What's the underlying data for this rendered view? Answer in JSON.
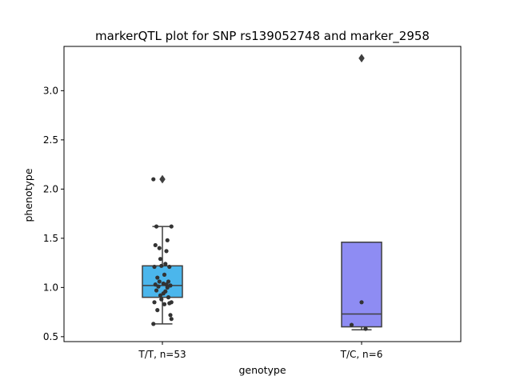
{
  "chart_data": {
    "type": "box",
    "title": "markerQTL plot for SNP rs139052748 and marker_2958",
    "xlabel": "genotype",
    "ylabel": "phenotype",
    "ylim": [
      0.45,
      3.45
    ],
    "yticks": [
      0.5,
      1.0,
      1.5,
      2.0,
      2.5,
      3.0
    ],
    "ytick_labels": [
      "0.5",
      "1.0",
      "1.5",
      "2.0",
      "2.5",
      "3.0"
    ],
    "categories": [
      "T/T, n=53",
      "T/C, n=6"
    ],
    "colors": {
      "T/T, n=53": "#4bb6ec",
      "T/C, n=6": "#8e8cf3",
      "box_edge": "#3f3f3f",
      "points": "#333333",
      "frame": "#000000"
    },
    "boxes": [
      {
        "category": "T/T, n=53",
        "q1": 0.9,
        "median": 1.02,
        "q3": 1.22,
        "whisker_low": 0.63,
        "whisker_high": 1.62,
        "outliers": [
          2.1
        ]
      },
      {
        "category": "T/C, n=6",
        "q1": 0.6,
        "median": 0.73,
        "q3": 1.46,
        "whisker_low": 0.57,
        "whisker_high": 1.46,
        "outliers": [
          3.33
        ]
      }
    ],
    "points": [
      {
        "category": "T/T, n=53",
        "jitter": [
          -0.45,
          0.45,
          -0.3,
          0.25,
          -0.35,
          -0.15,
          0.2,
          -0.1,
          0.15,
          -0.05,
          0.35,
          -0.4,
          0.1,
          -0.25,
          0.3,
          -0.15,
          0.05,
          0.2,
          -0.35,
          0.4,
          -0.2,
          0.25,
          -0.3,
          0.15,
          0.05,
          -0.1,
          0.3,
          -0.05,
          -0.4,
          0.45,
          0.35,
          0.1,
          -0.25,
          0.4,
          0.45,
          -0.45
        ],
        "values": [
          2.1,
          1.62,
          1.62,
          1.48,
          1.43,
          1.4,
          1.37,
          1.29,
          1.24,
          1.22,
          1.21,
          1.21,
          1.13,
          1.1,
          1.06,
          1.06,
          1.04,
          1.03,
          1.03,
          1.02,
          1.01,
          1.0,
          0.97,
          0.96,
          0.94,
          0.92,
          0.9,
          0.88,
          0.85,
          0.85,
          0.84,
          0.83,
          0.77,
          0.72,
          0.68,
          0.63
        ]
      },
      {
        "category": "T/C, n=6",
        "jitter": [
          0.0,
          -0.5,
          0.2
        ],
        "values": [
          0.85,
          0.62,
          0.58
        ]
      }
    ]
  }
}
